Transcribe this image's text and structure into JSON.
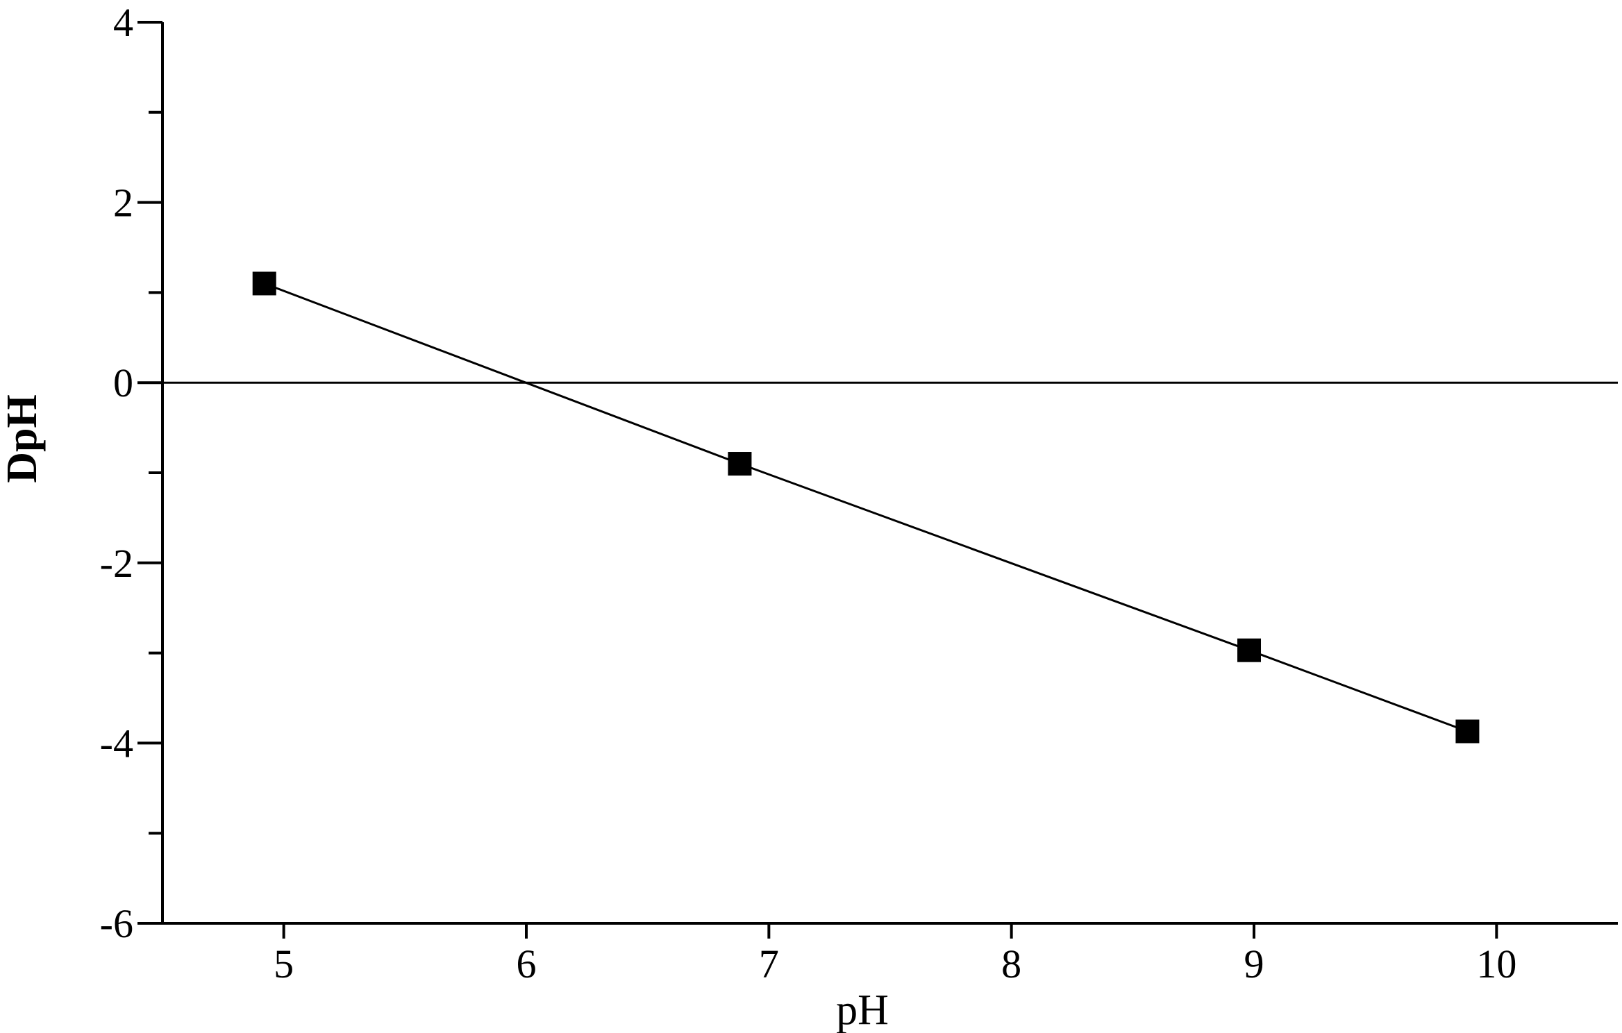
{
  "chart_data": {
    "type": "line",
    "title": "",
    "xlabel": "pH",
    "ylabel": "DpH",
    "xlim": [
      4.5,
      10.5
    ],
    "ylim": [
      -6,
      4
    ],
    "x_ticks": [
      5,
      6,
      7,
      8,
      9,
      10
    ],
    "x_tick_labels": [
      "5",
      "6",
      "7",
      "8",
      "9",
      "10"
    ],
    "y_ticks": [
      4,
      2,
      0,
      -2,
      -4,
      -6
    ],
    "y_tick_labels": [
      "4",
      "2",
      "0",
      "-2",
      "-4",
      "-6"
    ],
    "y_minor_ticks": [
      3,
      1,
      -1,
      -3,
      -5
    ],
    "reference_line_y": 0,
    "grid": false,
    "legend": "none",
    "marker": "square",
    "colors": {
      "series": "#000000",
      "axes": "#000000",
      "background": "#ffffff"
    },
    "series": [
      {
        "x": [
          4.92,
          6.88,
          8.98,
          9.88
        ],
        "y": [
          1.1,
          -0.9,
          -2.97,
          -3.87
        ]
      }
    ]
  }
}
